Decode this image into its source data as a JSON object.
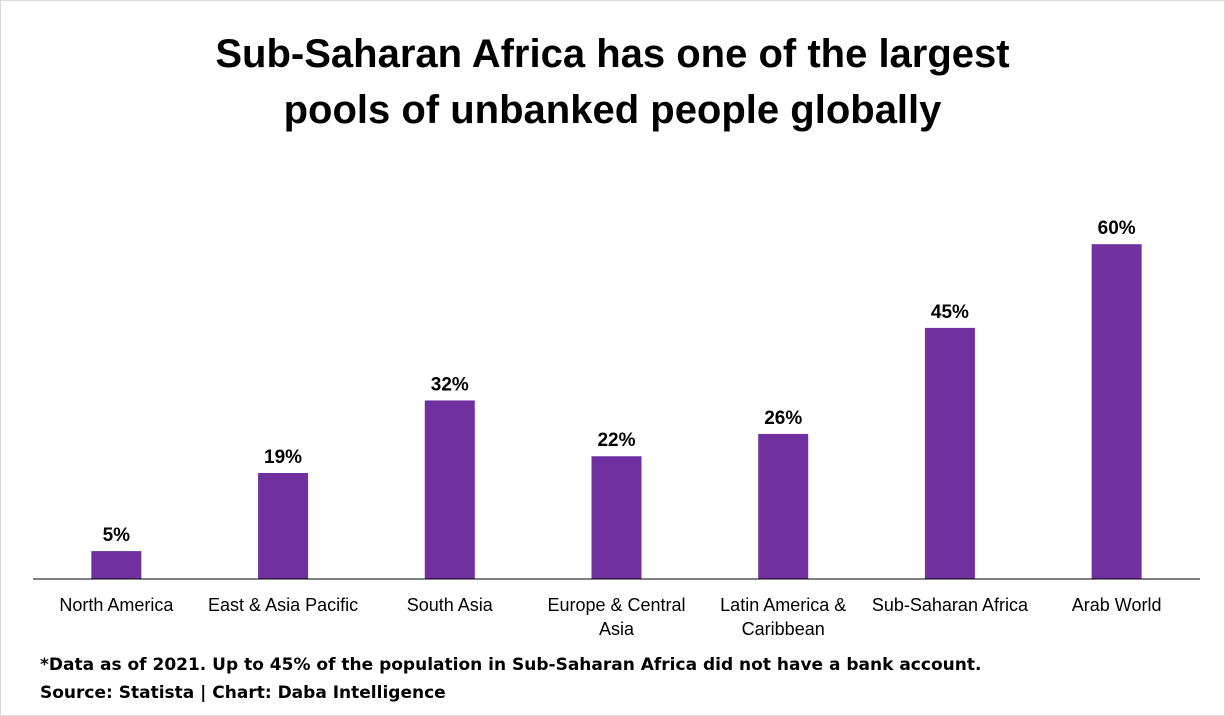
{
  "title_lines": [
    "Sub-Saharan Africa has one of the largest",
    "pools of unbanked people globally"
  ],
  "footnote": "*Data as of 2021. Up to 45% of the population in Sub-Saharan Africa did not have a bank account.",
  "source": "Source: Statista  | Chart: Daba Intelligence",
  "colors": {
    "bar": "#7030A0",
    "axis": "#000000"
  },
  "chart_data": {
    "type": "bar",
    "title": "Sub-Saharan Africa has one of the largest pools of unbanked people globally",
    "xlabel": "",
    "ylabel": "",
    "ylim": [
      0,
      70
    ],
    "grid": false,
    "legend": "none",
    "categories": [
      [
        "North America"
      ],
      [
        "East & Asia Pacific"
      ],
      [
        "South Asia"
      ],
      [
        "Europe & Central",
        "Asia"
      ],
      [
        "Latin America &",
        "Caribbean"
      ],
      [
        "Sub-Saharan Africa"
      ],
      [
        "Arab World"
      ]
    ],
    "values": [
      5,
      19,
      32,
      22,
      26,
      45,
      60
    ],
    "value_labels": [
      "5%",
      "19%",
      "32%",
      "22%",
      "26%",
      "45%",
      "60%"
    ]
  }
}
